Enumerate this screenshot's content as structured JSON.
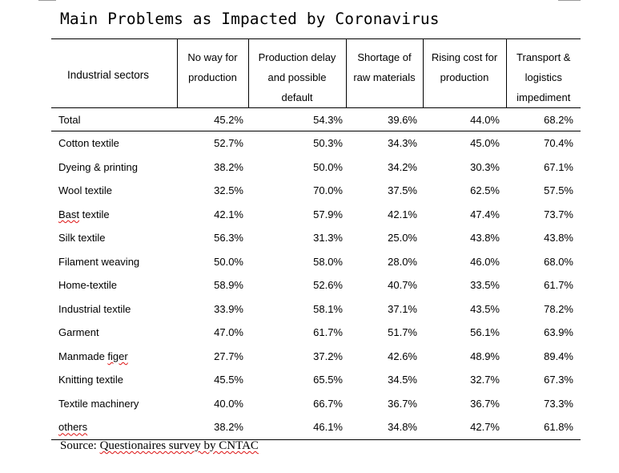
{
  "title": "Main Problems as Impacted by Coronavirus",
  "header": {
    "sector_label": "Industrial sectors",
    "columns": [
      [
        "No way for",
        "production"
      ],
      [
        "Production delay",
        "and possible",
        "default"
      ],
      [
        "Shortage of",
        "raw materials"
      ],
      [
        "Rising cost for",
        "production"
      ],
      [
        "Transport &",
        "logistics",
        "impediment"
      ]
    ]
  },
  "rows": [
    {
      "sector": "Total",
      "values": [
        "45.2%",
        "54.3%",
        "39.6%",
        "44.0%",
        "68.2%"
      ]
    },
    {
      "sector": "Cotton textile",
      "values": [
        "52.7%",
        "50.3%",
        "34.3%",
        "45.0%",
        "70.4%"
      ]
    },
    {
      "sector": "Dyeing & printing",
      "values": [
        "38.2%",
        "50.0%",
        "34.2%",
        "30.3%",
        "67.1%"
      ]
    },
    {
      "sector": "Wool textile",
      "values": [
        "32.5%",
        "70.0%",
        "37.5%",
        "62.5%",
        "57.5%"
      ]
    },
    {
      "sector": "Bast textile",
      "values": [
        "42.1%",
        "57.9%",
        "42.1%",
        "47.4%",
        "73.7%"
      ]
    },
    {
      "sector": "Silk textile",
      "values": [
        "56.3%",
        "31.3%",
        "25.0%",
        "43.8%",
        "43.8%"
      ]
    },
    {
      "sector": "Filament weaving",
      "values": [
        "50.0%",
        "58.0%",
        "28.0%",
        "46.0%",
        "68.0%"
      ]
    },
    {
      "sector": "Home-textile",
      "values": [
        "58.9%",
        "52.6%",
        "40.7%",
        "33.5%",
        "61.7%"
      ]
    },
    {
      "sector": "Industrial textile",
      "values": [
        "33.9%",
        "58.1%",
        "37.1%",
        "43.5%",
        "78.2%"
      ]
    },
    {
      "sector": "Garment",
      "values": [
        "47.0%",
        "61.7%",
        "51.7%",
        "56.1%",
        "63.9%"
      ]
    },
    {
      "sector": "Manmade figer",
      "values": [
        "27.7%",
        "37.2%",
        "42.6%",
        "48.9%",
        "89.4%"
      ]
    },
    {
      "sector": "Knitting textile",
      "values": [
        "45.5%",
        "65.5%",
        "34.5%",
        "32.7%",
        "67.3%"
      ]
    },
    {
      "sector": "Textile machinery",
      "values": [
        "40.0%",
        "66.7%",
        "36.7%",
        "36.7%",
        "73.3%"
      ]
    },
    {
      "sector": "others",
      "values": [
        "38.2%",
        "46.1%",
        "34.8%",
        "42.7%",
        "61.8%"
      ]
    }
  ],
  "source": {
    "prefix": "Source:",
    "text": "Questionaires survey by CNTAC"
  },
  "colors": {
    "text": "#000000",
    "rule": "#000000",
    "spellcheck_underline": "#dd1111"
  }
}
